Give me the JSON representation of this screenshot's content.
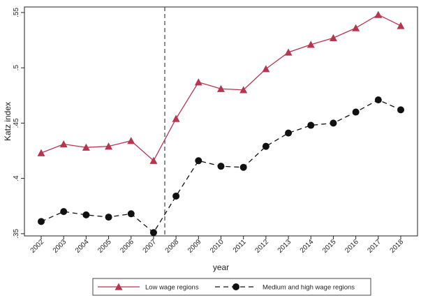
{
  "chart_data": {
    "type": "line",
    "title": "",
    "xlabel": "year",
    "ylabel": "Katz index",
    "categories": [
      "2002",
      "2003",
      "2004",
      "2005",
      "2006",
      "2007",
      "2008",
      "2009",
      "2010",
      "2011",
      "2012",
      "2013",
      "2014",
      "2015",
      "2016",
      "2017",
      "2018"
    ],
    "ylim": [
      0.348,
      0.555
    ],
    "yticks": [
      0.35,
      0.4,
      0.45,
      0.5,
      0.55
    ],
    "ytick_labels": [
      ".35",
      ".4",
      ".45",
      ".5",
      ".55"
    ],
    "vline_between": [
      "2007",
      "2008"
    ],
    "grid": false,
    "legend_position": "bottom",
    "series": [
      {
        "name": "Low wage regions",
        "color": "#b8354f",
        "marker": "triangle",
        "line_style": "solid",
        "values": [
          0.423,
          0.431,
          0.428,
          0.429,
          0.434,
          0.416,
          0.454,
          0.487,
          0.481,
          0.48,
          0.499,
          0.514,
          0.521,
          0.527,
          0.536,
          0.548,
          0.538
        ]
      },
      {
        "name": "Medium and high wage regions",
        "color": "#111111",
        "marker": "circle",
        "line_style": "dashed",
        "values": [
          0.361,
          0.37,
          0.367,
          0.365,
          0.368,
          0.351,
          0.384,
          0.416,
          0.411,
          0.41,
          0.429,
          0.441,
          0.448,
          0.45,
          0.46,
          0.471,
          0.462
        ]
      }
    ]
  }
}
